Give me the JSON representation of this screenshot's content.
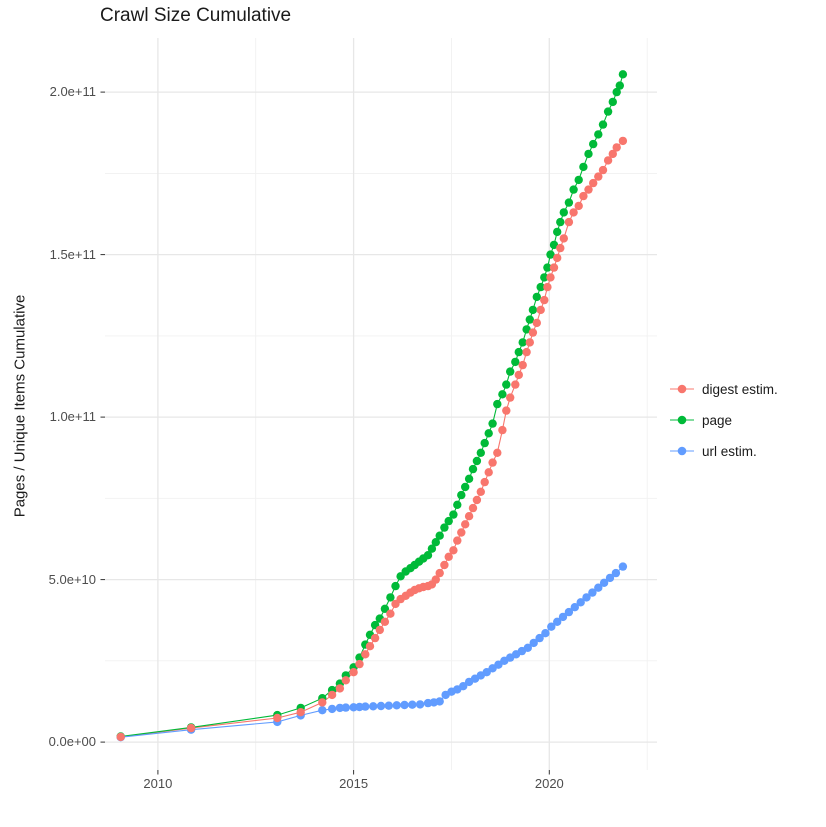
{
  "chart_data": {
    "type": "scatter",
    "title": "Crawl Size Cumulative",
    "xlabel": "",
    "ylabel": "Pages / Unique Items Cumulative",
    "legend_position": "right",
    "grid": true,
    "x_range": [
      2008.65,
      2022.75
    ],
    "y_range": [
      -8600000000,
      216660000000
    ],
    "x_ticks": [
      {
        "v": 2010,
        "label": "2010"
      },
      {
        "v": 2015,
        "label": "2015"
      },
      {
        "v": 2020,
        "label": "2020"
      }
    ],
    "x_minor": [
      2012.5,
      2017.5,
      2022.5
    ],
    "y_ticks": [
      {
        "v": 0,
        "label": "0.0e+00"
      },
      {
        "v": 50000000000.0,
        "label": "5.0e+10"
      },
      {
        "v": 100000000000.0,
        "label": "1.0e+11"
      },
      {
        "v": 150000000000.0,
        "label": "1.5e+11"
      },
      {
        "v": 200000000000.0,
        "label": "2.0e+11"
      }
    ],
    "y_minor": [
      25000000000.0,
      75000000000.0,
      125000000000.0,
      175000000000.0
    ],
    "grid_major_color": "#e7e7e7",
    "grid_minor_color": "#f1f1f1",
    "tick_color": "#333333",
    "series": [
      {
        "name": "digest estim.",
        "color": "#F8766D",
        "z": 3,
        "points": [
          [
            2009.05,
            1600000000.0
          ],
          [
            2010.85,
            4300000000.0
          ],
          [
            2013.05,
            7400000000.0
          ],
          [
            2013.65,
            9200000000.0
          ],
          [
            2014.2,
            12200000000.0
          ],
          [
            2014.45,
            14500000000.0
          ],
          [
            2014.65,
            16500000000.0
          ],
          [
            2014.8,
            19000000000.0
          ],
          [
            2015.0,
            21500000000.0
          ],
          [
            2015.15,
            24000000000.0
          ],
          [
            2015.3,
            27000000000.0
          ],
          [
            2015.42,
            29500000000.0
          ],
          [
            2015.55,
            32000000000.0
          ],
          [
            2015.67,
            34500000000.0
          ],
          [
            2015.8,
            37000000000.0
          ],
          [
            2015.94,
            39500000000.0
          ],
          [
            2016.07,
            42500000000.0
          ],
          [
            2016.2,
            44000000000.0
          ],
          [
            2016.33,
            45000000000.0
          ],
          [
            2016.45,
            46000000000.0
          ],
          [
            2016.56,
            46800000000.0
          ],
          [
            2016.67,
            47300000000.0
          ],
          [
            2016.78,
            47700000000.0
          ],
          [
            2016.9,
            48000000000.0
          ],
          [
            2017.0,
            48500000000.0
          ],
          [
            2017.1,
            50000000000.0
          ],
          [
            2017.2,
            52000000000.0
          ],
          [
            2017.32,
            54500000000.0
          ],
          [
            2017.43,
            57000000000.0
          ],
          [
            2017.55,
            59000000000.0
          ],
          [
            2017.65,
            62000000000.0
          ],
          [
            2017.75,
            64500000000.0
          ],
          [
            2017.85,
            67000000000.0
          ],
          [
            2017.95,
            69500000000.0
          ],
          [
            2018.05,
            72000000000.0
          ],
          [
            2018.15,
            74500000000.0
          ],
          [
            2018.25,
            77000000000.0
          ],
          [
            2018.35,
            80000000000.0
          ],
          [
            2018.45,
            83000000000.0
          ],
          [
            2018.55,
            86000000000.0
          ],
          [
            2018.67,
            89000000000.0
          ],
          [
            2018.8,
            96000000000.0
          ],
          [
            2018.9,
            102000000000.0
          ],
          [
            2019.0,
            106000000000.0
          ],
          [
            2019.13,
            110000000000.0
          ],
          [
            2019.22,
            113000000000.0
          ],
          [
            2019.32,
            116000000000.0
          ],
          [
            2019.42,
            120000000000.0
          ],
          [
            2019.5,
            123000000000.0
          ],
          [
            2019.58,
            126000000000.0
          ],
          [
            2019.68,
            129000000000.0
          ],
          [
            2019.78,
            133000000000.0
          ],
          [
            2019.87,
            136000000000.0
          ],
          [
            2019.95,
            140000000000.0
          ],
          [
            2020.03,
            143000000000.0
          ],
          [
            2020.12,
            146000000000.0
          ],
          [
            2020.2,
            149000000000.0
          ],
          [
            2020.28,
            152000000000.0
          ],
          [
            2020.37,
            155000000000.0
          ],
          [
            2020.5,
            160000000000.0
          ],
          [
            2020.62,
            163000000000.0
          ],
          [
            2020.75,
            165000000000.0
          ],
          [
            2020.87,
            168000000000.0
          ],
          [
            2021.0,
            170000000000.0
          ],
          [
            2021.12,
            172000000000.0
          ],
          [
            2021.25,
            174000000000.0
          ],
          [
            2021.37,
            176000000000.0
          ],
          [
            2021.5,
            179000000000.0
          ],
          [
            2021.62,
            181000000000.0
          ],
          [
            2021.72,
            183000000000.0
          ],
          [
            2021.88,
            185000000000.0
          ]
        ]
      },
      {
        "name": "page",
        "color": "#00BA38",
        "z": 1,
        "points": [
          [
            2009.05,
            1700000000.0
          ],
          [
            2010.85,
            4500000000.0
          ],
          [
            2013.05,
            8300000000.0
          ],
          [
            2013.65,
            10500000000.0
          ],
          [
            2014.2,
            13500000000.0
          ],
          [
            2014.45,
            16000000000.0
          ],
          [
            2014.65,
            18000000000.0
          ],
          [
            2014.8,
            20500000000.0
          ],
          [
            2015.0,
            23000000000.0
          ],
          [
            2015.15,
            26000000000.0
          ],
          [
            2015.3,
            30000000000.0
          ],
          [
            2015.42,
            33000000000.0
          ],
          [
            2015.55,
            36000000000.0
          ],
          [
            2015.67,
            38000000000.0
          ],
          [
            2015.8,
            41000000000.0
          ],
          [
            2015.94,
            44500000000.0
          ],
          [
            2016.07,
            48000000000.0
          ],
          [
            2016.2,
            51000000000.0
          ],
          [
            2016.33,
            52500000000.0
          ],
          [
            2016.45,
            53500000000.0
          ],
          [
            2016.56,
            54500000000.0
          ],
          [
            2016.67,
            55500000000.0
          ],
          [
            2016.78,
            56500000000.0
          ],
          [
            2016.9,
            57500000000.0
          ],
          [
            2017.0,
            59500000000.0
          ],
          [
            2017.1,
            61500000000.0
          ],
          [
            2017.2,
            63500000000.0
          ],
          [
            2017.32,
            66000000000.0
          ],
          [
            2017.43,
            68000000000.0
          ],
          [
            2017.55,
            70000000000.0
          ],
          [
            2017.65,
            73000000000.0
          ],
          [
            2017.75,
            76000000000.0
          ],
          [
            2017.85,
            78500000000.0
          ],
          [
            2017.95,
            81000000000.0
          ],
          [
            2018.05,
            84000000000.0
          ],
          [
            2018.15,
            86500000000.0
          ],
          [
            2018.25,
            89000000000.0
          ],
          [
            2018.35,
            92000000000.0
          ],
          [
            2018.45,
            95000000000.0
          ],
          [
            2018.55,
            98000000000.0
          ],
          [
            2018.67,
            104000000000.0
          ],
          [
            2018.8,
            107000000000.0
          ],
          [
            2018.9,
            110000000000.0
          ],
          [
            2019.0,
            114000000000.0
          ],
          [
            2019.13,
            117000000000.0
          ],
          [
            2019.22,
            120000000000.0
          ],
          [
            2019.32,
            123000000000.0
          ],
          [
            2019.42,
            127000000000.0
          ],
          [
            2019.5,
            130000000000.0
          ],
          [
            2019.58,
            133000000000.0
          ],
          [
            2019.68,
            137000000000.0
          ],
          [
            2019.78,
            140000000000.0
          ],
          [
            2019.87,
            143000000000.0
          ],
          [
            2019.95,
            146000000000.0
          ],
          [
            2020.03,
            150000000000.0
          ],
          [
            2020.12,
            153000000000.0
          ],
          [
            2020.2,
            157000000000.0
          ],
          [
            2020.28,
            160000000000.0
          ],
          [
            2020.37,
            163000000000.0
          ],
          [
            2020.5,
            166000000000.0
          ],
          [
            2020.62,
            170000000000.0
          ],
          [
            2020.75,
            173000000000.0
          ],
          [
            2020.87,
            177000000000.0
          ],
          [
            2021.0,
            181000000000.0
          ],
          [
            2021.12,
            184000000000.0
          ],
          [
            2021.25,
            187000000000.0
          ],
          [
            2021.37,
            190000000000.0
          ],
          [
            2021.5,
            194000000000.0
          ],
          [
            2021.62,
            197000000000.0
          ],
          [
            2021.72,
            200000000000.0
          ],
          [
            2021.8,
            202000000000.0
          ],
          [
            2021.88,
            205500000000.0
          ]
        ]
      },
      {
        "name": "url estim.",
        "color": "#619CFF",
        "z": 2,
        "points": [
          [
            2009.05,
            1500000000.0
          ],
          [
            2010.85,
            3800000000.0
          ],
          [
            2013.05,
            6200000000.0
          ],
          [
            2013.65,
            8200000000.0
          ],
          [
            2014.2,
            9800000000.0
          ],
          [
            2014.45,
            10200000000.0
          ],
          [
            2014.65,
            10500000000.0
          ],
          [
            2014.8,
            10600000000.0
          ],
          [
            2015.0,
            10700000000.0
          ],
          [
            2015.15,
            10800000000.0
          ],
          [
            2015.3,
            10900000000.0
          ],
          [
            2015.5,
            11000000000.0
          ],
          [
            2015.7,
            11100000000.0
          ],
          [
            2015.9,
            11200000000.0
          ],
          [
            2016.1,
            11300000000.0
          ],
          [
            2016.3,
            11400000000.0
          ],
          [
            2016.5,
            11500000000.0
          ],
          [
            2016.7,
            11600000000.0
          ],
          [
            2016.9,
            12000000000.0
          ],
          [
            2017.05,
            12200000000.0
          ],
          [
            2017.2,
            12500000000.0
          ],
          [
            2017.35,
            14500000000.0
          ],
          [
            2017.5,
            15500000000.0
          ],
          [
            2017.65,
            16200000000.0
          ],
          [
            2017.8,
            17200000000.0
          ],
          [
            2017.95,
            18500000000.0
          ],
          [
            2018.1,
            19500000000.0
          ],
          [
            2018.25,
            20500000000.0
          ],
          [
            2018.4,
            21500000000.0
          ],
          [
            2018.55,
            22700000000.0
          ],
          [
            2018.7,
            23800000000.0
          ],
          [
            2018.85,
            25000000000.0
          ],
          [
            2019.0,
            26000000000.0
          ],
          [
            2019.15,
            27000000000.0
          ],
          [
            2019.3,
            28000000000.0
          ],
          [
            2019.45,
            29000000000.0
          ],
          [
            2019.6,
            30500000000.0
          ],
          [
            2019.75,
            32000000000.0
          ],
          [
            2019.9,
            33500000000.0
          ],
          [
            2020.05,
            35500000000.0
          ],
          [
            2020.2,
            37000000000.0
          ],
          [
            2020.35,
            38500000000.0
          ],
          [
            2020.5,
            40000000000.0
          ],
          [
            2020.65,
            41500000000.0
          ],
          [
            2020.8,
            43000000000.0
          ],
          [
            2020.95,
            44500000000.0
          ],
          [
            2021.1,
            46000000000.0
          ],
          [
            2021.25,
            47500000000.0
          ],
          [
            2021.4,
            49000000000.0
          ],
          [
            2021.55,
            50500000000.0
          ],
          [
            2021.7,
            52000000000.0
          ],
          [
            2021.88,
            54000000000.0
          ]
        ]
      }
    ]
  }
}
